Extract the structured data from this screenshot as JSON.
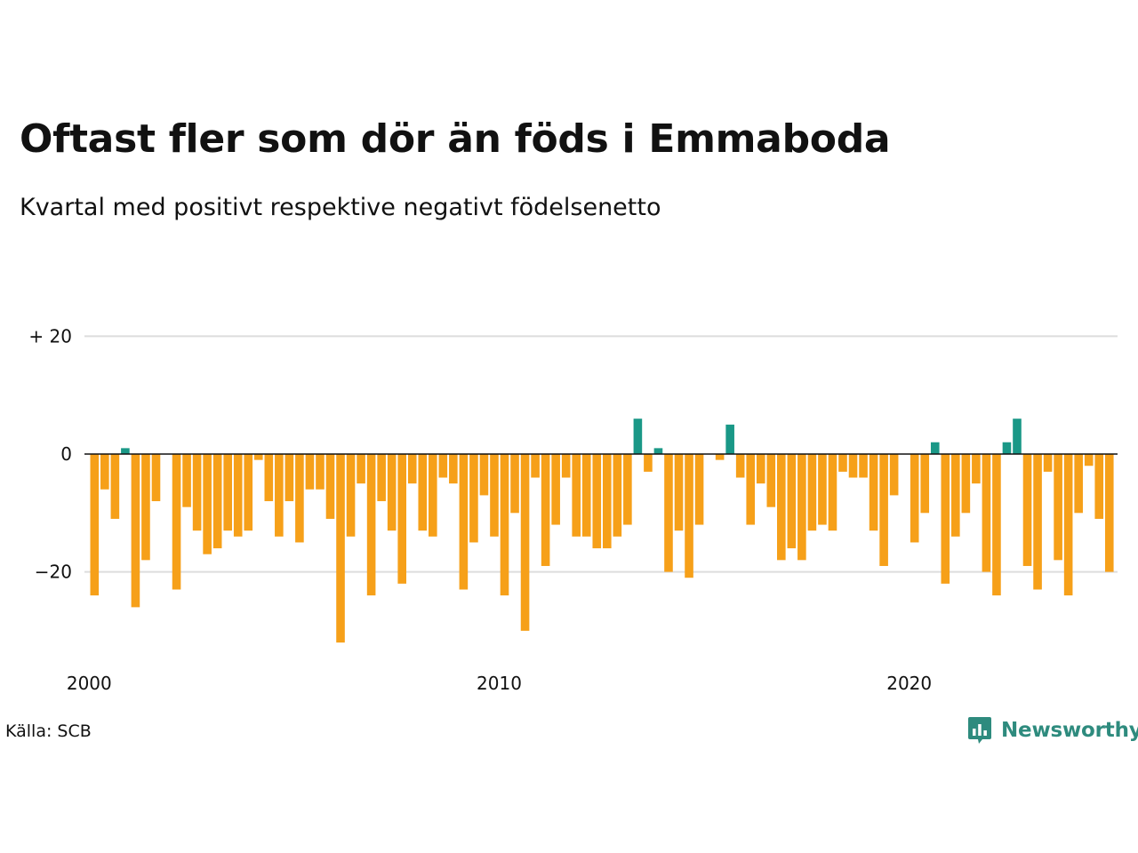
{
  "title": "Oftast fler som dör än föds i Emmaboda",
  "subtitle": "Kvartal med positivt respektive negativt födelsenetto",
  "source": "Källa: SCB",
  "brand": {
    "name": "Newsworthy",
    "color": "#2e8b7e"
  },
  "colors": {
    "positive": "#1a9887",
    "negative": "#f6a019",
    "grid": "#dddddd",
    "zero": "#111111"
  },
  "chart_data": {
    "type": "bar",
    "start_year": 2000,
    "start_quarter": 1,
    "ylim": [
      -33,
      21
    ],
    "y_ticks": [
      20,
      0,
      -20
    ],
    "y_tick_labels": [
      "+ 20",
      "0",
      "−20"
    ],
    "x_ticks": [
      2000,
      2010,
      2020
    ],
    "x_tick_labels": [
      "2000",
      "2010",
      "2020"
    ],
    "grid": true,
    "values": [
      -24,
      -6,
      -11,
      1,
      -26,
      -18,
      -8,
      0,
      -23,
      -9,
      -13,
      -17,
      -16,
      -13,
      -14,
      -13,
      -1,
      -8,
      -14,
      -8,
      -15,
      -6,
      -6,
      -11,
      -32,
      -14,
      -5,
      -24,
      -8,
      -13,
      -22,
      -5,
      -13,
      -14,
      -4,
      -5,
      -23,
      -15,
      -7,
      -14,
      -24,
      -10,
      -30,
      -4,
      -19,
      -12,
      -4,
      -14,
      -14,
      -16,
      -16,
      -14,
      -12,
      6,
      -3,
      1,
      -20,
      -13,
      -21,
      -12,
      0,
      -1,
      5,
      -4,
      -12,
      -5,
      -9,
      -18,
      -16,
      -18,
      -13,
      -12,
      -13,
      -3,
      -4,
      -4,
      -13,
      -19,
      -7,
      0,
      -15,
      -10,
      2,
      -22,
      -14,
      -10,
      -5,
      -20,
      -24,
      2,
      6,
      -19,
      -23,
      -3,
      -18,
      -24,
      -10,
      -2,
      -11,
      -20
    ]
  }
}
